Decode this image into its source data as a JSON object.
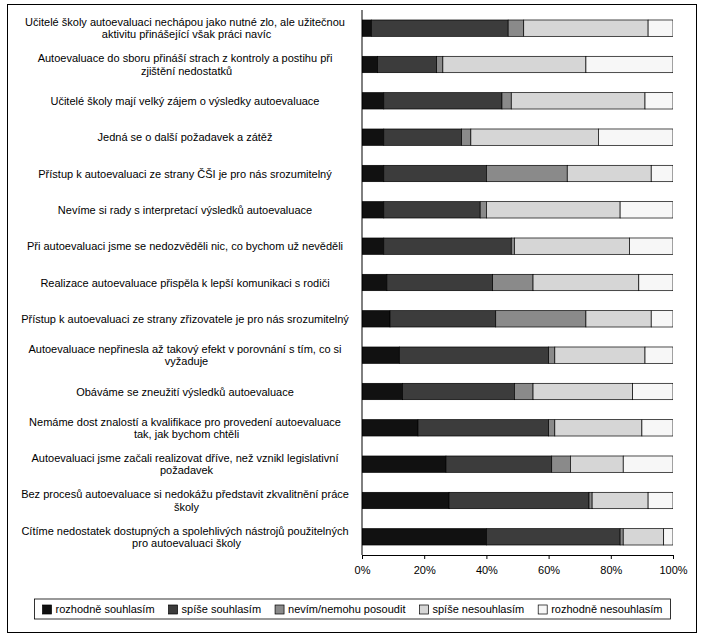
{
  "chart_data": {
    "type": "bar",
    "orientation": "horizontal",
    "stacked": true,
    "legend": "bottom",
    "categories": [
      "Učitelé školy autoevaluaci nechápou jako nutné zlo, ale užitečnou aktivitu přinášející však práci navíc",
      "Autoevaluace do sboru přináší strach z kontroly a postihu při zjištění nedostatků",
      "Učitelé školy mají velký zájem o výsledky autoevaluace",
      "Jedná se o další požadavek a zátěž",
      "Přístup k autoevaluaci ze strany ČŠI je pro nás srozumitelný",
      "Nevíme si rady s interpretací výsledků autoevaluace",
      "Při autoevaluaci jsme se nedozvěděli nic, co bychom už nevěděli",
      "Realizace autoevaluace přispěla k lepší komunikaci s rodiči",
      "Přístup k autoevaluaci ze strany zřizovatele je pro nás srozumitelný",
      "Autoevaluace nepřinesla až takový efekt v porovnání s tím, co si vyžaduje",
      "Obáváme se zneužití výsledků autoevaluace",
      "Nemáme dost znalostí a kvalifikace pro provedení autoevaluace tak, jak bychom chtěli",
      "Autoevaluaci jsme začali realizovat dříve, než vznikl legislativní požadavek",
      "Bez procesů autoevaluace si nedokážu představit zkvalitnění práce školy",
      "Cítíme nedostatek dostupných a spolehlivých nástrojů použitelných pro autoevaluaci školy"
    ],
    "series": [
      {
        "name": "rozhodně souhlasím",
        "color": "#111111",
        "values": [
          3,
          5,
          7,
          7,
          7,
          7,
          7,
          8,
          9,
          12,
          13,
          18,
          27,
          28,
          40
        ]
      },
      {
        "name": "spíše souhlasím",
        "color": "#3c3c3c",
        "values": [
          44,
          19,
          38,
          25,
          33,
          31,
          41,
          34,
          34,
          48,
          36,
          42,
          34,
          45,
          43
        ]
      },
      {
        "name": "nevím/nemohu posoudit",
        "color": "#8a8a8a",
        "values": [
          5,
          2,
          3,
          3,
          26,
          2,
          1,
          13,
          29,
          2,
          6,
          2,
          6,
          1,
          1
        ]
      },
      {
        "name": "spíše nesouhlasím",
        "color": "#d6d6d6",
        "values": [
          40,
          46,
          43,
          41,
          27,
          43,
          37,
          34,
          21,
          29,
          32,
          28,
          17,
          18,
          13
        ]
      },
      {
        "name": "rozhodně nesouhlasím",
        "color": "#f7f7f7",
        "values": [
          8,
          28,
          9,
          24,
          7,
          17,
          14,
          11,
          7,
          9,
          13,
          10,
          16,
          8,
          3
        ]
      }
    ],
    "xlim": [
      0,
      100
    ],
    "xticks": [
      {
        "value": 0,
        "label": "0%"
      },
      {
        "value": 20,
        "label": "20%"
      },
      {
        "value": 40,
        "label": "40%"
      },
      {
        "value": 60,
        "label": "60%"
      },
      {
        "value": 80,
        "label": "80%"
      },
      {
        "value": 100,
        "label": "100%"
      }
    ],
    "grid": false
  }
}
